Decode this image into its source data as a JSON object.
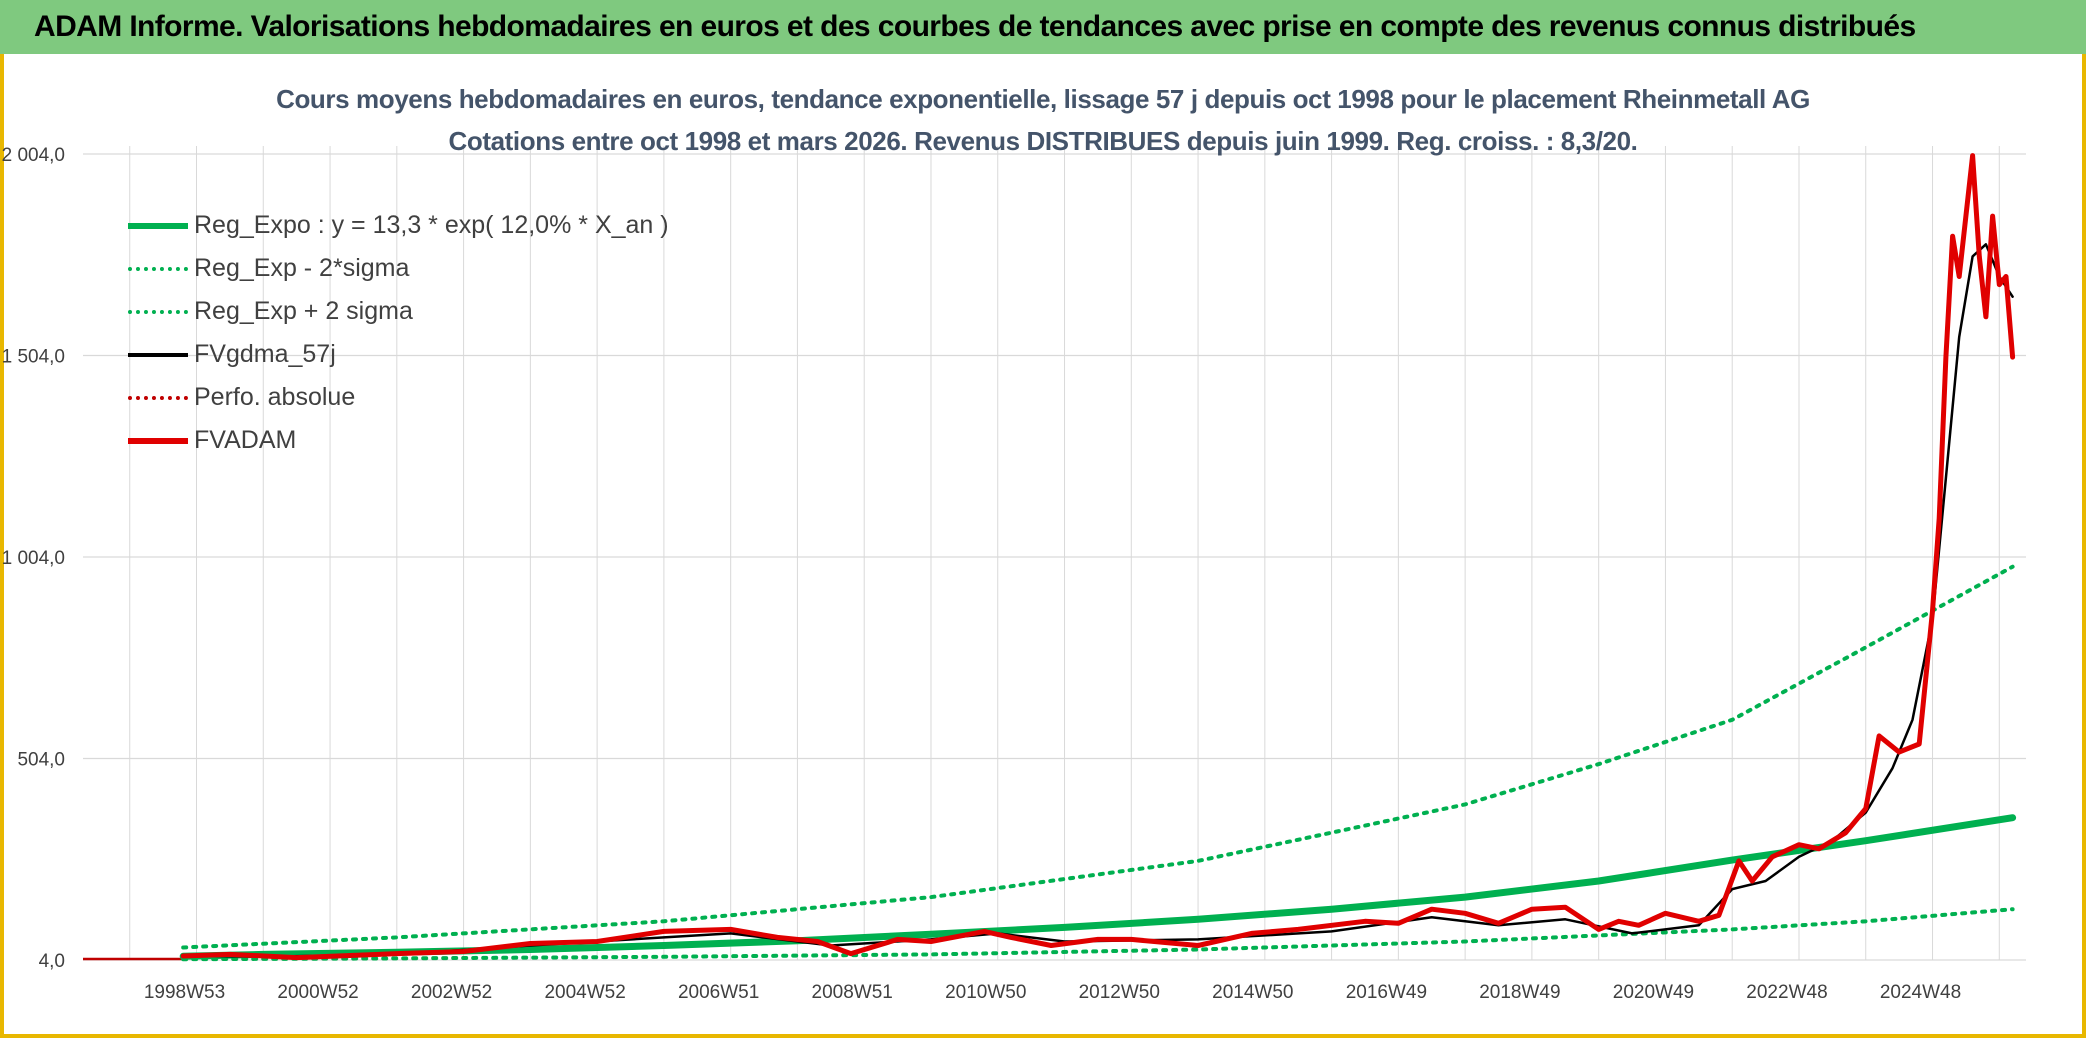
{
  "header": {
    "title": "ADAM Informe. Valorisations hebdomadaires en euros et des courbes de tendances avec prise en compte des revenus connus distribués"
  },
  "chart_data": {
    "type": "line",
    "title": "Cours moyens hebdomadaires en euros, tendance exponentielle, lissage 57 j depuis oct 1998 pour le placement Rheinmetall AG",
    "subtitle": "Cotations entre oct 1998 et mars 2026. Revenus DISTRIBUES depuis juin 1999. Reg. croiss. : 8,3/20.",
    "xlabel": "",
    "ylabel": "",
    "x_range": [
      1997.3,
      2026.4
    ],
    "ylim": [
      4,
      2004
    ],
    "y_ticks": [
      4,
      504,
      1004,
      1504,
      2004
    ],
    "y_tick_labels": [
      "4,0",
      "504,0",
      "1 004,0",
      "1 504,0",
      "2 004,0"
    ],
    "x_tick_labels": [
      {
        "label": "1998W53",
        "year": 1999.0
      },
      {
        "label": "2000W52",
        "year": 2001.0
      },
      {
        "label": "2002W52",
        "year": 2003.0
      },
      {
        "label": "2004W52",
        "year": 2005.0
      },
      {
        "label": "2006W51",
        "year": 2007.0
      },
      {
        "label": "2008W51",
        "year": 2009.0
      },
      {
        "label": "2010W50",
        "year": 2011.0
      },
      {
        "label": "2012W50",
        "year": 2013.0
      },
      {
        "label": "2014W50",
        "year": 2015.0
      },
      {
        "label": "2016W49",
        "year": 2017.0
      },
      {
        "label": "2018W49",
        "year": 2019.0
      },
      {
        "label": "2020W49",
        "year": 2021.0
      },
      {
        "label": "2022W48",
        "year": 2023.0
      },
      {
        "label": "2024W48",
        "year": 2025.0
      }
    ],
    "legend": [
      {
        "label": "Reg_Expo : y = 13,3 * exp( 12,0% *  X_an )",
        "color": "#00b050",
        "style": "solid-thick"
      },
      {
        "label": "Reg_Exp - 2*sigma",
        "color": "#00b050",
        "style": "dotted"
      },
      {
        "label": "Reg_Exp + 2 sigma",
        "color": "#00b050",
        "style": "dotted"
      },
      {
        "label": "FVgdma_57j",
        "color": "#000000",
        "style": "solid"
      },
      {
        "label": "Perfo. absolue",
        "color": "#c00000",
        "style": "dotted"
      },
      {
        "label": "FVADAM",
        "color": "#e00000",
        "style": "solid-thick"
      }
    ],
    "series": [
      {
        "name": "Reg_Expo : y = 13,3 * exp( 12,0% *  X_an )",
        "x": [
          1998.8,
          2000.0,
          2002.0,
          2004.0,
          2006.0,
          2008.0,
          2010.0,
          2012.0,
          2014.0,
          2016.0,
          2018.0,
          2020.0,
          2022.0,
          2024.0,
          2026.2
        ],
        "y": [
          13.3,
          18,
          23,
          30,
          40,
          52,
          68,
          85,
          105,
          130,
          160,
          200,
          252,
          300,
          357
        ]
      },
      {
        "name": "Reg_Exp - 2*sigma",
        "x": [
          1998.8,
          2002.0,
          2006.0,
          2010.0,
          2014.0,
          2018.0,
          2022.0,
          2024.0,
          2026.2
        ],
        "y": [
          6,
          8,
          12,
          18,
          30,
          50,
          80,
          100,
          130
        ]
      },
      {
        "name": "Reg_Exp + 2 sigma",
        "x": [
          1998.8,
          2002.0,
          2006.0,
          2010.0,
          2014.0,
          2018.0,
          2020.0,
          2022.0,
          2024.0,
          2026.2
        ],
        "y": [
          35,
          60,
          100,
          160,
          250,
          390,
          490,
          600,
          780,
          980
        ]
      },
      {
        "name": "FVgdma_57j",
        "x": [
          1998.8,
          2000.0,
          2002.0,
          2004.0,
          2006.0,
          2007.0,
          2008.5,
          2010.0,
          2011.0,
          2012.0,
          2014.0,
          2016.0,
          2017.5,
          2018.5,
          2019.5,
          2020.5,
          2021.5,
          2022.0,
          2022.5,
          2023.0,
          2023.5,
          2024.0,
          2024.4,
          2024.7,
          2025.0,
          2025.2,
          2025.4,
          2025.6,
          2025.8,
          2026.0,
          2026.2
        ],
        "y": [
          15,
          12,
          18,
          40,
          60,
          70,
          40,
          55,
          70,
          50,
          55,
          75,
          110,
          90,
          105,
          70,
          90,
          180,
          200,
          260,
          300,
          370,
          480,
          600,
          850,
          1200,
          1550,
          1750,
          1780,
          1700,
          1650
        ]
      },
      {
        "name": "FVADAM",
        "x": [
          1998.8,
          1999.5,
          2000.5,
          2002.0,
          2003.0,
          2004.0,
          2005.0,
          2006.0,
          2007.0,
          2007.7,
          2008.3,
          2008.8,
          2009.5,
          2010.0,
          2010.8,
          2011.2,
          2011.8,
          2012.5,
          2013.0,
          2014.0,
          2014.8,
          2015.5,
          2016.5,
          2017.0,
          2017.5,
          2018.0,
          2018.5,
          2019.0,
          2019.5,
          2020.0,
          2020.3,
          2020.6,
          2021.0,
          2021.5,
          2021.8,
          2022.1,
          2022.3,
          2022.6,
          2023.0,
          2023.3,
          2023.7,
          2024.0,
          2024.2,
          2024.5,
          2024.8,
          2025.0,
          2025.1,
          2025.2,
          2025.3,
          2025.4,
          2025.5,
          2025.6,
          2025.7,
          2025.8,
          2025.9,
          2026.0,
          2026.1,
          2026.2
        ],
        "y": [
          14,
          18,
          10,
          20,
          25,
          45,
          50,
          75,
          80,
          60,
          50,
          20,
          55,
          50,
          75,
          60,
          40,
          55,
          55,
          40,
          70,
          80,
          100,
          95,
          130,
          120,
          95,
          130,
          135,
          80,
          100,
          90,
          120,
          100,
          115,
          250,
          200,
          260,
          290,
          280,
          320,
          380,
          560,
          520,
          540,
          870,
          1100,
          1500,
          1800,
          1700,
          1850,
          2000,
          1750,
          1600,
          1850,
          1680,
          1700,
          1500
        ]
      }
    ]
  }
}
